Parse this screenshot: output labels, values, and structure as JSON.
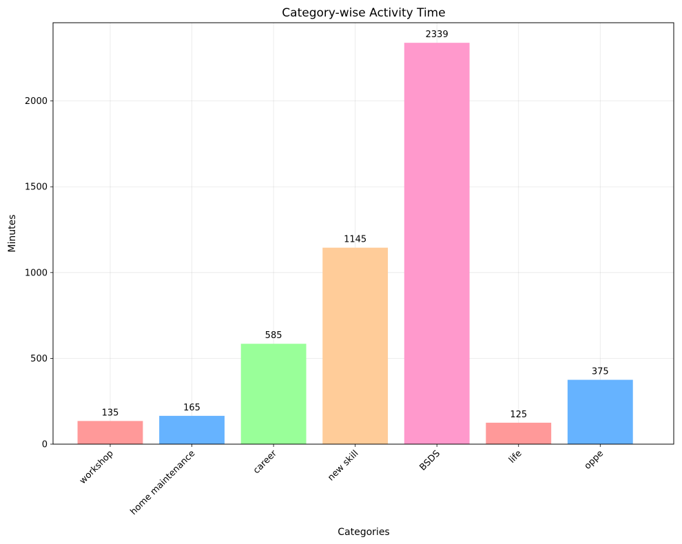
{
  "chart_data": {
    "type": "bar",
    "title": "Category-wise Activity Time",
    "xlabel": "Categories",
    "ylabel": "Minutes",
    "categories": [
      "workshop",
      "home maintenance",
      "career",
      "new skill",
      "BSDS",
      "life",
      "oppe"
    ],
    "values": [
      135,
      165,
      585,
      1145,
      2339,
      125,
      375
    ],
    "data_labels": [
      "135",
      "165",
      "585",
      "1145",
      "2339",
      "125",
      "375"
    ],
    "colors": [
      "#ff9999",
      "#66b3ff",
      "#99ff99",
      "#ffcc99",
      "#ff99cc",
      "#ff9999",
      "#66b3ff"
    ],
    "ylim": [
      0,
      2456
    ],
    "yticks": [
      0,
      500,
      1000,
      1500,
      2000
    ],
    "ytick_labels": [
      "0",
      "500",
      "1000",
      "1500",
      "2000"
    ],
    "grid": true,
    "legend": "none"
  }
}
